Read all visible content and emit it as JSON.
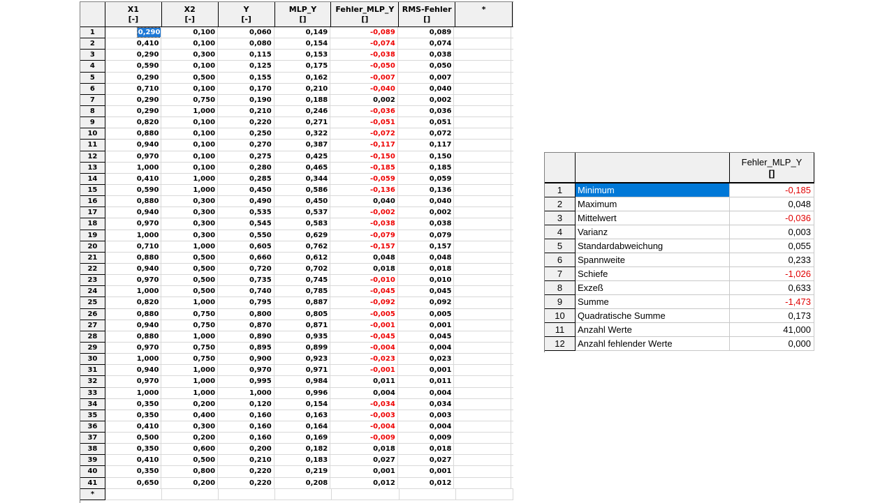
{
  "grid": {
    "columns": [
      {
        "name": "X1",
        "unit": "[-]"
      },
      {
        "name": "X2",
        "unit": "[-]"
      },
      {
        "name": "Y",
        "unit": "[-]"
      },
      {
        "name": "MLP_Y",
        "unit": "[]"
      },
      {
        "name": "Fehler_MLP_Y",
        "unit": "[]"
      },
      {
        "name": "RMS-Fehler",
        "unit": "[]"
      },
      {
        "name": "*",
        "unit": ""
      }
    ],
    "new_row_marker": "*",
    "selected_cell": "0,290",
    "rows": [
      [
        "1",
        "0,290",
        "0,100",
        "0,060",
        "0,149",
        "-0,089",
        "0,089"
      ],
      [
        "2",
        "0,410",
        "0,100",
        "0,080",
        "0,154",
        "-0,074",
        "0,074"
      ],
      [
        "3",
        "0,290",
        "0,300",
        "0,115",
        "0,153",
        "-0,038",
        "0,038"
      ],
      [
        "4",
        "0,590",
        "0,100",
        "0,125",
        "0,175",
        "-0,050",
        "0,050"
      ],
      [
        "5",
        "0,290",
        "0,500",
        "0,155",
        "0,162",
        "-0,007",
        "0,007"
      ],
      [
        "6",
        "0,710",
        "0,100",
        "0,170",
        "0,210",
        "-0,040",
        "0,040"
      ],
      [
        "7",
        "0,290",
        "0,750",
        "0,190",
        "0,188",
        "0,002",
        "0,002"
      ],
      [
        "8",
        "0,290",
        "1,000",
        "0,210",
        "0,246",
        "-0,036",
        "0,036"
      ],
      [
        "9",
        "0,820",
        "0,100",
        "0,220",
        "0,271",
        "-0,051",
        "0,051"
      ],
      [
        "10",
        "0,880",
        "0,100",
        "0,250",
        "0,322",
        "-0,072",
        "0,072"
      ],
      [
        "11",
        "0,940",
        "0,100",
        "0,270",
        "0,387",
        "-0,117",
        "0,117"
      ],
      [
        "12",
        "0,970",
        "0,100",
        "0,275",
        "0,425",
        "-0,150",
        "0,150"
      ],
      [
        "13",
        "1,000",
        "0,100",
        "0,280",
        "0,465",
        "-0,185",
        "0,185"
      ],
      [
        "14",
        "0,410",
        "1,000",
        "0,285",
        "0,344",
        "-0,059",
        "0,059"
      ],
      [
        "15",
        "0,590",
        "1,000",
        "0,450",
        "0,586",
        "-0,136",
        "0,136"
      ],
      [
        "16",
        "0,880",
        "0,300",
        "0,490",
        "0,450",
        "0,040",
        "0,040"
      ],
      [
        "17",
        "0,940",
        "0,300",
        "0,535",
        "0,537",
        "-0,002",
        "0,002"
      ],
      [
        "18",
        "0,970",
        "0,300",
        "0,545",
        "0,583",
        "-0,038",
        "0,038"
      ],
      [
        "19",
        "1,000",
        "0,300",
        "0,550",
        "0,629",
        "-0,079",
        "0,079"
      ],
      [
        "20",
        "0,710",
        "1,000",
        "0,605",
        "0,762",
        "-0,157",
        "0,157"
      ],
      [
        "21",
        "0,880",
        "0,500",
        "0,660",
        "0,612",
        "0,048",
        "0,048"
      ],
      [
        "22",
        "0,940",
        "0,500",
        "0,720",
        "0,702",
        "0,018",
        "0,018"
      ],
      [
        "23",
        "0,970",
        "0,500",
        "0,735",
        "0,745",
        "-0,010",
        "0,010"
      ],
      [
        "24",
        "1,000",
        "0,500",
        "0,740",
        "0,785",
        "-0,045",
        "0,045"
      ],
      [
        "25",
        "0,820",
        "1,000",
        "0,795",
        "0,887",
        "-0,092",
        "0,092"
      ],
      [
        "26",
        "0,880",
        "0,750",
        "0,800",
        "0,805",
        "-0,005",
        "0,005"
      ],
      [
        "27",
        "0,940",
        "0,750",
        "0,870",
        "0,871",
        "-0,001",
        "0,001"
      ],
      [
        "28",
        "0,880",
        "1,000",
        "0,890",
        "0,935",
        "-0,045",
        "0,045"
      ],
      [
        "29",
        "0,970",
        "0,750",
        "0,895",
        "0,899",
        "-0,004",
        "0,004"
      ],
      [
        "30",
        "1,000",
        "0,750",
        "0,900",
        "0,923",
        "-0,023",
        "0,023"
      ],
      [
        "31",
        "0,940",
        "1,000",
        "0,970",
        "0,971",
        "-0,001",
        "0,001"
      ],
      [
        "32",
        "0,970",
        "1,000",
        "0,995",
        "0,984",
        "0,011",
        "0,011"
      ],
      [
        "33",
        "1,000",
        "1,000",
        "1,000",
        "0,996",
        "0,004",
        "0,004"
      ],
      [
        "34",
        "0,350",
        "0,200",
        "0,120",
        "0,154",
        "-0,034",
        "0,034"
      ],
      [
        "35",
        "0,350",
        "0,400",
        "0,160",
        "0,163",
        "-0,003",
        "0,003"
      ],
      [
        "36",
        "0,410",
        "0,300",
        "0,160",
        "0,164",
        "-0,004",
        "0,004"
      ],
      [
        "37",
        "0,500",
        "0,200",
        "0,160",
        "0,169",
        "-0,009",
        "0,009"
      ],
      [
        "38",
        "0,350",
        "0,600",
        "0,200",
        "0,182",
        "0,018",
        "0,018"
      ],
      [
        "39",
        "0,410",
        "0,500",
        "0,210",
        "0,183",
        "0,027",
        "0,027"
      ],
      [
        "40",
        "0,350",
        "0,800",
        "0,220",
        "0,219",
        "0,001",
        "0,001"
      ],
      [
        "41",
        "0,650",
        "0,200",
        "0,220",
        "0,208",
        "0,012",
        "0,012"
      ]
    ]
  },
  "stats": {
    "column_name": "Fehler_MLP_Y",
    "column_unit": "[]",
    "rows": [
      {
        "num": "1",
        "label": "Minimum",
        "value": "-0,185"
      },
      {
        "num": "2",
        "label": "Maximum",
        "value": "0,048"
      },
      {
        "num": "3",
        "label": "Mittelwert",
        "value": "-0,036"
      },
      {
        "num": "4",
        "label": "Varianz",
        "value": "0,003"
      },
      {
        "num": "5",
        "label": "Standardabweichung",
        "value": "0,055"
      },
      {
        "num": "6",
        "label": "Spannweite",
        "value": "0,233"
      },
      {
        "num": "7",
        "label": "Schiefe",
        "value": "-1,026"
      },
      {
        "num": "8",
        "label": "Exzeß",
        "value": "0,633"
      },
      {
        "num": "9",
        "label": "Summe",
        "value": "-1,473"
      },
      {
        "num": "10",
        "label": "Quadratische Summe",
        "value": "0,173"
      },
      {
        "num": "11",
        "label": "Anzahl Werte",
        "value": "41,000"
      },
      {
        "num": "12",
        "label": "Anzahl fehlender Werte",
        "value": "0,000"
      }
    ]
  },
  "colors": {
    "negative": "#ee0000",
    "selection": "#0078d7",
    "header_bg": "#f0f0f0"
  }
}
